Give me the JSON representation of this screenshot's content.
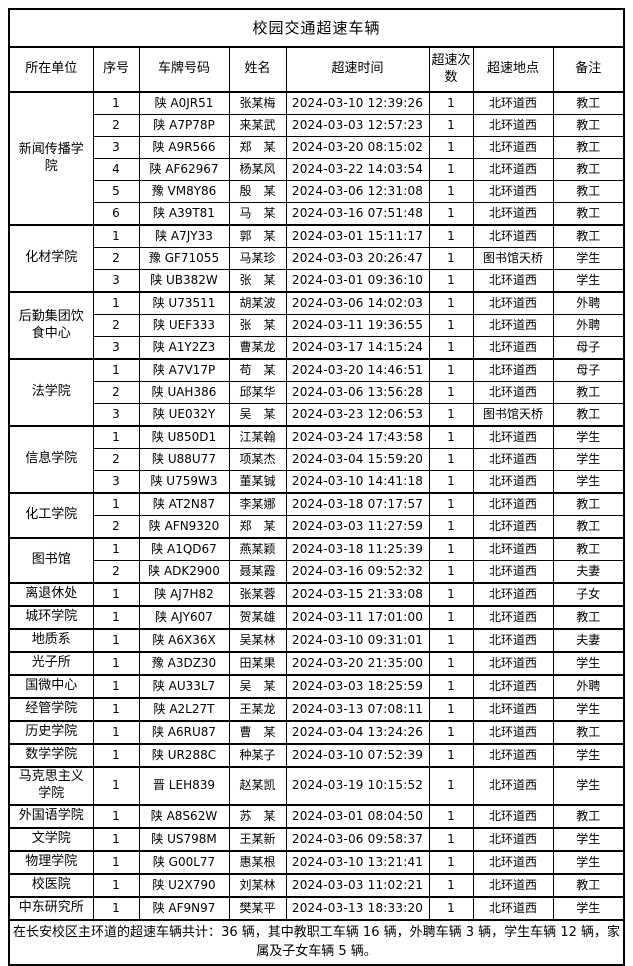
{
  "title": "校园交通超速车辆",
  "columns": [
    "所在单位",
    "序号",
    "车牌号码",
    "姓名",
    "超速时间",
    "超速次数",
    "超速地点",
    "备注"
  ],
  "groups": [
    {
      "unit": "新闻传播学院",
      "rows": [
        {
          "no": "1",
          "plate": "陕 A0JR51",
          "name": "张某梅",
          "time": "2024-03-10 12:39:26",
          "count": "1",
          "location": "北环道西",
          "remark": "教工"
        },
        {
          "no": "2",
          "plate": "陕 A7P78P",
          "name": "来某武",
          "time": "2024-03-03 12:57:23",
          "count": "1",
          "location": "北环道西",
          "remark": "教工"
        },
        {
          "no": "3",
          "plate": "陕 A9R566",
          "name": "郑　某",
          "time": "2024-03-20 08:15:02",
          "count": "1",
          "location": "北环道西",
          "remark": "教工"
        },
        {
          "no": "4",
          "plate": "陕 AF62967",
          "name": "杨某风",
          "time": "2024-03-22 14:03:54",
          "count": "1",
          "location": "北环道西",
          "remark": "教工"
        },
        {
          "no": "5",
          "plate": "豫 VM8Y86",
          "name": "殷　某",
          "time": "2024-03-06 12:31:08",
          "count": "1",
          "location": "北环道西",
          "remark": "教工"
        },
        {
          "no": "6",
          "plate": "陕 A39T81",
          "name": "马　某",
          "time": "2024-03-16 07:51:48",
          "count": "1",
          "location": "北环道西",
          "remark": "教工"
        }
      ]
    },
    {
      "unit": "化材学院",
      "rows": [
        {
          "no": "1",
          "plate": "陕 A7JY33",
          "name": "郭　某",
          "time": "2024-03-01 15:11:17",
          "count": "1",
          "location": "北环道西",
          "remark": "教工"
        },
        {
          "no": "2",
          "plate": "豫 GF71055",
          "name": "马某珍",
          "time": "2024-03-03 20:26:47",
          "count": "1",
          "location": "图书馆天桥",
          "remark": "学生"
        },
        {
          "no": "3",
          "plate": "陕 UB382W",
          "name": "张　某",
          "time": "2024-03-01 09:36:10",
          "count": "1",
          "location": "北环道西",
          "remark": "学生"
        }
      ]
    },
    {
      "unit": "后勤集团饮食中心",
      "rows": [
        {
          "no": "1",
          "plate": "陕 U73511",
          "name": "胡某波",
          "time": "2024-03-06 14:02:03",
          "count": "1",
          "location": "北环道西",
          "remark": "外聘"
        },
        {
          "no": "2",
          "plate": "陕 UEF333",
          "name": "张　某",
          "time": "2024-03-11 19:36:55",
          "count": "1",
          "location": "北环道西",
          "remark": "外聘"
        },
        {
          "no": "3",
          "plate": "陕 A1Y2Z3",
          "name": "曹某龙",
          "time": "2024-03-17 14:15:24",
          "count": "1",
          "location": "北环道西",
          "remark": "母子"
        }
      ]
    },
    {
      "unit": "法学院",
      "rows": [
        {
          "no": "1",
          "plate": "陕 A7V17P",
          "name": "苟　某",
          "time": "2024-03-20 14:46:51",
          "count": "1",
          "location": "北环道西",
          "remark": "母子"
        },
        {
          "no": "2",
          "plate": "陕 UAH386",
          "name": "邱某华",
          "time": "2024-03-06 13:56:28",
          "count": "1",
          "location": "北环道西",
          "remark": "教工"
        },
        {
          "no": "3",
          "plate": "陕 UE032Y",
          "name": "吴　某",
          "time": "2024-03-23 12:06:53",
          "count": "1",
          "location": "图书馆天桥",
          "remark": "教工"
        }
      ]
    },
    {
      "unit": "信息学院",
      "rows": [
        {
          "no": "1",
          "plate": "陕 U850D1",
          "name": "江某翰",
          "time": "2024-03-24 17:43:58",
          "count": "1",
          "location": "北环道西",
          "remark": "学生"
        },
        {
          "no": "2",
          "plate": "陕 U88U77",
          "name": "项某杰",
          "time": "2024-03-04 15:59:20",
          "count": "1",
          "location": "北环道西",
          "remark": "学生"
        },
        {
          "no": "3",
          "plate": "陕 U759W3",
          "name": "董某铖",
          "time": "2024-03-10 14:41:18",
          "count": "1",
          "location": "北环道西",
          "remark": "学生"
        }
      ]
    },
    {
      "unit": "化工学院",
      "rows": [
        {
          "no": "1",
          "plate": "陕 AT2N87",
          "name": "李某娜",
          "time": "2024-03-18 07:17:57",
          "count": "1",
          "location": "北环道西",
          "remark": "教工"
        },
        {
          "no": "2",
          "plate": "陕 AFN9320",
          "name": "郑　某",
          "time": "2024-03-03 11:27:59",
          "count": "1",
          "location": "北环道西",
          "remark": "教工"
        }
      ]
    },
    {
      "unit": "图书馆",
      "rows": [
        {
          "no": "1",
          "plate": "陕 A1QD67",
          "name": "燕某颖",
          "time": "2024-03-18 11:25:39",
          "count": "1",
          "location": "北环道西",
          "remark": "教工"
        },
        {
          "no": "2",
          "plate": "陕 ADK2900",
          "name": "聂某霞",
          "time": "2024-03-16 09:52:32",
          "count": "1",
          "location": "北环道西",
          "remark": "夫妻"
        }
      ]
    },
    {
      "unit": "离退休处",
      "rows": [
        {
          "no": "1",
          "plate": "陕 AJ7H82",
          "name": "张某蓉",
          "time": "2024-03-15 21:33:08",
          "count": "1",
          "location": "北环道西",
          "remark": "子女"
        }
      ]
    },
    {
      "unit": "城环学院",
      "rows": [
        {
          "no": "1",
          "plate": "陕 AJY607",
          "name": "贺某雄",
          "time": "2024-03-11 17:01:00",
          "count": "1",
          "location": "北环道西",
          "remark": "教工"
        }
      ]
    },
    {
      "unit": "地质系",
      "rows": [
        {
          "no": "1",
          "plate": "陕 A6X36X",
          "name": "吴某林",
          "time": "2024-03-10 09:31:01",
          "count": "1",
          "location": "北环道西",
          "remark": "夫妻"
        }
      ]
    },
    {
      "unit": "光子所",
      "rows": [
        {
          "no": "1",
          "plate": "豫 A3DZ30",
          "name": "田某果",
          "time": "2024-03-20 21:35:00",
          "count": "1",
          "location": "北环道西",
          "remark": "学生"
        }
      ]
    },
    {
      "unit": "国微中心",
      "rows": [
        {
          "no": "1",
          "plate": "陕 AU33L7",
          "name": "吴　某",
          "time": "2024-03-03 18:25:59",
          "count": "1",
          "location": "北环道西",
          "remark": "外聘"
        }
      ]
    },
    {
      "unit": "经管学院",
      "rows": [
        {
          "no": "1",
          "plate": "陕 A2L27T",
          "name": "王某龙",
          "time": "2024-03-13 07:08:11",
          "count": "1",
          "location": "北环道西",
          "remark": "学生"
        }
      ]
    },
    {
      "unit": "历史学院",
      "rows": [
        {
          "no": "1",
          "plate": "陕 A6RU87",
          "name": "曹　某",
          "time": "2024-03-04 13:24:26",
          "count": "1",
          "location": "北环道西",
          "remark": "教工"
        }
      ]
    },
    {
      "unit": "数学学院",
      "rows": [
        {
          "no": "1",
          "plate": "陕 UR288C",
          "name": "种某子",
          "time": "2024-03-10 07:52:39",
          "count": "1",
          "location": "北环道西",
          "remark": "学生"
        }
      ]
    },
    {
      "unit": "马克思主义学院",
      "rows": [
        {
          "no": "1",
          "plate": "晋 LEH839",
          "name": "赵某凯",
          "time": "2024-03-19 10:15:52",
          "count": "1",
          "location": "北环道西",
          "remark": "学生"
        }
      ]
    },
    {
      "unit": "外国语学院",
      "rows": [
        {
          "no": "1",
          "plate": "陕 A8S62W",
          "name": "苏　某",
          "time": "2024-03-01 08:04:50",
          "count": "1",
          "location": "北环道西",
          "remark": "教工"
        }
      ]
    },
    {
      "unit": "文学院",
      "rows": [
        {
          "no": "1",
          "plate": "陕 US798M",
          "name": "王某新",
          "time": "2024-03-06 09:58:37",
          "count": "1",
          "location": "北环道西",
          "remark": "学生"
        }
      ]
    },
    {
      "unit": "物理学院",
      "rows": [
        {
          "no": "1",
          "plate": "陕 G00L77",
          "name": "惠某根",
          "time": "2024-03-10 13:21:41",
          "count": "1",
          "location": "北环道西",
          "remark": "学生"
        }
      ]
    },
    {
      "unit": "校医院",
      "rows": [
        {
          "no": "1",
          "plate": "陕 U2X790",
          "name": "刘某林",
          "time": "2024-03-03 11:02:21",
          "count": "1",
          "location": "北环道西",
          "remark": "教工"
        }
      ]
    },
    {
      "unit": "中东研究所",
      "rows": [
        {
          "no": "1",
          "plate": "陕 AF9N97",
          "name": "樊某平",
          "time": "2024-03-13 18:33:20",
          "count": "1",
          "location": "北环道西",
          "remark": "学生"
        }
      ]
    }
  ],
  "footer": {
    "text": "在长安校区主环道的超速车辆共计：36 辆，其中教职工车辆 16 辆，外聘车辆 3 辆，学生车辆 12 辆，家属及子女车辆 5 辆。"
  },
  "colors": {
    "border": "#000000",
    "text": "#000000",
    "background": "#ffffff"
  }
}
